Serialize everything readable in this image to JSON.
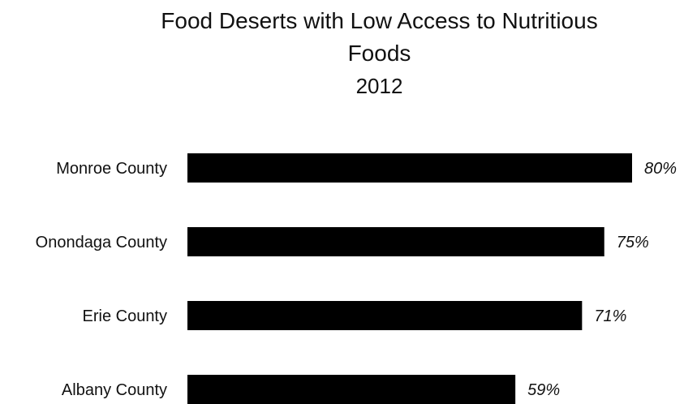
{
  "chart_data": {
    "type": "bar",
    "orientation": "horizontal",
    "title_lines": [
      "Food Deserts with Low Access to Nutritious",
      "Foods"
    ],
    "subtitle": "2012",
    "xlabel": "",
    "ylabel": "",
    "categories": [
      "Monroe County",
      "Onondaga County",
      "Erie County",
      "Albany County"
    ],
    "values": [
      80,
      75,
      71,
      59
    ],
    "data_labels": [
      "80%",
      "75%",
      "71%",
      "59%"
    ],
    "xlim": [
      0,
      100
    ],
    "grid": false,
    "legend": "none",
    "bar_color": "#000000"
  }
}
